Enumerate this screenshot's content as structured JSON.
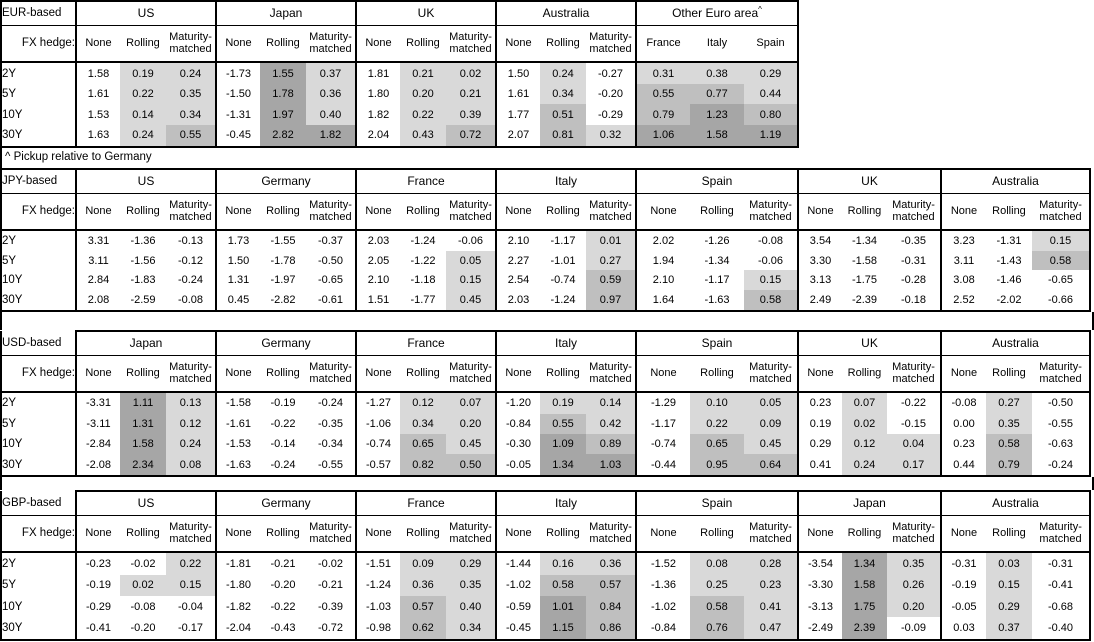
{
  "footnote": "^ Pickup relative to Germany",
  "hedge_label": "FX hedge:",
  "tenors": [
    "2Y",
    "5Y",
    "10Y",
    "30Y"
  ],
  "hedge_columns": [
    "None",
    "Rolling",
    "Maturity-matched"
  ],
  "heat_colors": {
    "light": "#d9d9d9",
    "medium": "#bfbfbf",
    "dark": "#a6a6a6"
  },
  "heat_thresholds": {
    "light_min": 0,
    "medium_min": 0.5,
    "dark_min": 1.0
  },
  "tables": [
    {
      "base": "EUR-based",
      "groups": [
        {
          "name": "US",
          "values": [
            [
              "1.58",
              "0.19",
              "0.24"
            ],
            [
              "1.61",
              "0.22",
              "0.35"
            ],
            [
              "1.53",
              "0.14",
              "0.34"
            ],
            [
              "1.63",
              "0.24",
              "0.55"
            ]
          ]
        },
        {
          "name": "Japan",
          "values": [
            [
              "-1.73",
              "1.55",
              "0.37"
            ],
            [
              "-1.50",
              "1.78",
              "0.36"
            ],
            [
              "-1.31",
              "1.97",
              "0.40"
            ],
            [
              "-0.45",
              "2.82",
              "1.82"
            ]
          ]
        },
        {
          "name": "UK",
          "values": [
            [
              "1.81",
              "0.21",
              "0.02"
            ],
            [
              "1.80",
              "0.20",
              "0.21"
            ],
            [
              "1.82",
              "0.22",
              "0.39"
            ],
            [
              "2.04",
              "0.43",
              "0.72"
            ]
          ]
        },
        {
          "name": "Australia",
          "values": [
            [
              "1.50",
              "0.24",
              "-0.27"
            ],
            [
              "1.61",
              "0.34",
              "-0.20"
            ],
            [
              "1.77",
              "0.51",
              "-0.29"
            ],
            [
              "2.07",
              "0.81",
              "0.32"
            ]
          ]
        },
        {
          "name": "Other Euro area",
          "superscript": "^",
          "shade_all": true,
          "cols": [
            "France",
            "Italy",
            "Spain"
          ],
          "values": [
            [
              "0.31",
              "0.38",
              "0.29"
            ],
            [
              "0.55",
              "0.77",
              "0.44"
            ],
            [
              "0.79",
              "1.23",
              "0.80"
            ],
            [
              "1.06",
              "1.58",
              "1.19"
            ]
          ]
        }
      ]
    },
    {
      "base": "JPY-based",
      "groups": [
        {
          "name": "US",
          "values": [
            [
              "3.31",
              "-1.36",
              "-0.13"
            ],
            [
              "3.11",
              "-1.56",
              "-0.12"
            ],
            [
              "2.84",
              "-1.83",
              "-0.24"
            ],
            [
              "2.08",
              "-2.59",
              "-0.08"
            ]
          ]
        },
        {
          "name": "Germany",
          "values": [
            [
              "1.73",
              "-1.55",
              "-0.37"
            ],
            [
              "1.50",
              "-1.78",
              "-0.50"
            ],
            [
              "1.31",
              "-1.97",
              "-0.65"
            ],
            [
              "0.45",
              "-2.82",
              "-0.61"
            ]
          ]
        },
        {
          "name": "France",
          "values": [
            [
              "2.03",
              "-1.24",
              "-0.06"
            ],
            [
              "2.05",
              "-1.22",
              "0.05"
            ],
            [
              "2.10",
              "-1.18",
              "0.15"
            ],
            [
              "1.51",
              "-1.77",
              "0.45"
            ]
          ]
        },
        {
          "name": "Italy",
          "values": [
            [
              "2.10",
              "-1.17",
              "0.01"
            ],
            [
              "2.27",
              "-1.01",
              "0.27"
            ],
            [
              "2.54",
              "-0.74",
              "0.59"
            ],
            [
              "2.03",
              "-1.24",
              "0.97"
            ]
          ]
        },
        {
          "name": "Spain",
          "values": [
            [
              "2.02",
              "-1.26",
              "-0.08"
            ],
            [
              "1.94",
              "-1.34",
              "-0.06"
            ],
            [
              "2.10",
              "-1.17",
              "0.15"
            ],
            [
              "1.64",
              "-1.63",
              "0.58"
            ]
          ]
        },
        {
          "name": "UK",
          "values": [
            [
              "3.54",
              "-1.34",
              "-0.35"
            ],
            [
              "3.30",
              "-1.58",
              "-0.31"
            ],
            [
              "3.13",
              "-1.75",
              "-0.28"
            ],
            [
              "2.49",
              "-2.39",
              "-0.18"
            ]
          ]
        },
        {
          "name": "Australia",
          "values": [
            [
              "3.23",
              "-1.31",
              "0.15"
            ],
            [
              "3.11",
              "-1.43",
              "0.58"
            ],
            [
              "3.08",
              "-1.46",
              "-0.65"
            ],
            [
              "2.52",
              "-2.02",
              "-0.66"
            ]
          ]
        }
      ]
    },
    {
      "base": "USD-based",
      "groups": [
        {
          "name": "Japan",
          "values": [
            [
              "-3.31",
              "1.11",
              "0.13"
            ],
            [
              "-3.11",
              "1.31",
              "0.12"
            ],
            [
              "-2.84",
              "1.58",
              "0.24"
            ],
            [
              "-2.08",
              "2.34",
              "0.08"
            ]
          ]
        },
        {
          "name": "Germany",
          "values": [
            [
              "-1.58",
              "-0.19",
              "-0.24"
            ],
            [
              "-1.61",
              "-0.22",
              "-0.35"
            ],
            [
              "-1.53",
              "-0.14",
              "-0.34"
            ],
            [
              "-1.63",
              "-0.24",
              "-0.55"
            ]
          ]
        },
        {
          "name": "France",
          "values": [
            [
              "-1.27",
              "0.12",
              "0.07"
            ],
            [
              "-1.06",
              "0.34",
              "0.20"
            ],
            [
              "-0.74",
              "0.65",
              "0.45"
            ],
            [
              "-0.57",
              "0.82",
              "0.50"
            ]
          ]
        },
        {
          "name": "Italy",
          "values": [
            [
              "-1.20",
              "0.19",
              "0.14"
            ],
            [
              "-0.84",
              "0.55",
              "0.42"
            ],
            [
              "-0.30",
              "1.09",
              "0.89"
            ],
            [
              "-0.05",
              "1.34",
              "1.03"
            ]
          ]
        },
        {
          "name": "Spain",
          "values": [
            [
              "-1.29",
              "0.10",
              "0.05"
            ],
            [
              "-1.17",
              "0.22",
              "0.09"
            ],
            [
              "-0.74",
              "0.65",
              "0.45"
            ],
            [
              "-0.44",
              "0.95",
              "0.64"
            ]
          ]
        },
        {
          "name": "UK",
          "values": [
            [
              "0.23",
              "0.07",
              "-0.22"
            ],
            [
              "0.19",
              "0.02",
              "-0.15"
            ],
            [
              "0.29",
              "0.12",
              "0.04"
            ],
            [
              "0.41",
              "0.24",
              "0.17"
            ]
          ]
        },
        {
          "name": "Australia",
          "values": [
            [
              "-0.08",
              "0.27",
              "-0.50"
            ],
            [
              "0.00",
              "0.35",
              "-0.55"
            ],
            [
              "0.23",
              "0.58",
              "-0.63"
            ],
            [
              "0.44",
              "0.79",
              "-0.24"
            ]
          ]
        }
      ]
    },
    {
      "base": "GBP-based",
      "groups": [
        {
          "name": "US",
          "values": [
            [
              "-0.23",
              "-0.02",
              "0.22"
            ],
            [
              "-0.19",
              "0.02",
              "0.15"
            ],
            [
              "-0.29",
              "-0.08",
              "-0.04"
            ],
            [
              "-0.41",
              "-0.20",
              "-0.17"
            ]
          ]
        },
        {
          "name": "Germany",
          "values": [
            [
              "-1.81",
              "-0.21",
              "-0.02"
            ],
            [
              "-1.80",
              "-0.20",
              "-0.21"
            ],
            [
              "-1.82",
              "-0.22",
              "-0.39"
            ],
            [
              "-2.04",
              "-0.43",
              "-0.72"
            ]
          ]
        },
        {
          "name": "France",
          "values": [
            [
              "-1.51",
              "0.09",
              "0.29"
            ],
            [
              "-1.24",
              "0.36",
              "0.35"
            ],
            [
              "-1.03",
              "0.57",
              "0.40"
            ],
            [
              "-0.98",
              "0.62",
              "0.34"
            ]
          ]
        },
        {
          "name": "Italy",
          "values": [
            [
              "-1.44",
              "0.16",
              "0.36"
            ],
            [
              "-1.02",
              "0.58",
              "0.57"
            ],
            [
              "-0.59",
              "1.01",
              "0.84"
            ],
            [
              "-0.45",
              "1.15",
              "0.86"
            ]
          ]
        },
        {
          "name": "Spain",
          "values": [
            [
              "-1.52",
              "0.08",
              "0.28"
            ],
            [
              "-1.36",
              "0.25",
              "0.23"
            ],
            [
              "-1.02",
              "0.58",
              "0.41"
            ],
            [
              "-0.84",
              "0.76",
              "0.47"
            ]
          ]
        },
        {
          "name": "Japan",
          "values": [
            [
              "-3.54",
              "1.34",
              "0.35"
            ],
            [
              "-3.30",
              "1.58",
              "0.26"
            ],
            [
              "-3.13",
              "1.75",
              "0.20"
            ],
            [
              "-2.49",
              "2.39",
              "-0.09"
            ]
          ]
        },
        {
          "name": "Australia",
          "values": [
            [
              "-0.31",
              "0.03",
              "-0.31"
            ],
            [
              "-0.19",
              "0.15",
              "-0.41"
            ],
            [
              "-0.05",
              "0.29",
              "-0.68"
            ],
            [
              "0.03",
              "0.37",
              "-0.40"
            ]
          ]
        }
      ]
    }
  ]
}
